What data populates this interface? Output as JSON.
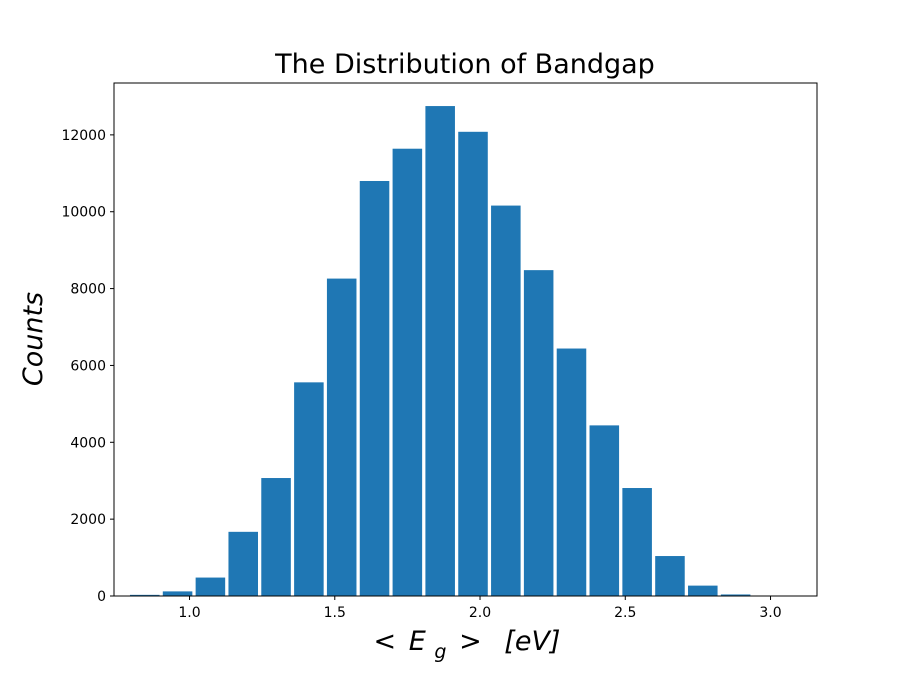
{
  "chart_data": {
    "type": "bar",
    "title": "The Distribution of Bandgap",
    "ylabel": "Counts",
    "xlabel": {
      "lt": "<",
      "E": "E",
      "sub": "g",
      "gt": ">",
      "unit": "[eV]"
    },
    "xlim": [
      0.74,
      3.16
    ],
    "ylim": [
      0,
      13350
    ],
    "xticks": [
      1.0,
      1.5,
      2.0,
      2.5,
      3.0
    ],
    "xtick_labels": [
      "1.0",
      "1.5",
      "2.0",
      "2.5",
      "3.0"
    ],
    "yticks": [
      0,
      2000,
      4000,
      6000,
      8000,
      10000,
      12000
    ],
    "ytick_labels": [
      "0",
      "2000",
      "4000",
      "6000",
      "8000",
      "10000",
      "12000"
    ],
    "bin_edges": [
      0.795,
      0.908,
      1.021,
      1.134,
      1.247,
      1.36,
      1.473,
      1.586,
      1.699,
      1.812,
      1.925,
      2.038,
      2.151,
      2.264,
      2.377,
      2.49,
      2.603,
      2.716,
      2.829,
      2.942,
      3.055
    ],
    "values": [
      30,
      120,
      480,
      1670,
      3070,
      5560,
      8260,
      10800,
      11640,
      12750,
      12080,
      10160,
      8480,
      6440,
      4440,
      2810,
      1040,
      270,
      40,
      5
    ],
    "bar_color": "#1f77b4",
    "grid": false,
    "legend": "none"
  }
}
